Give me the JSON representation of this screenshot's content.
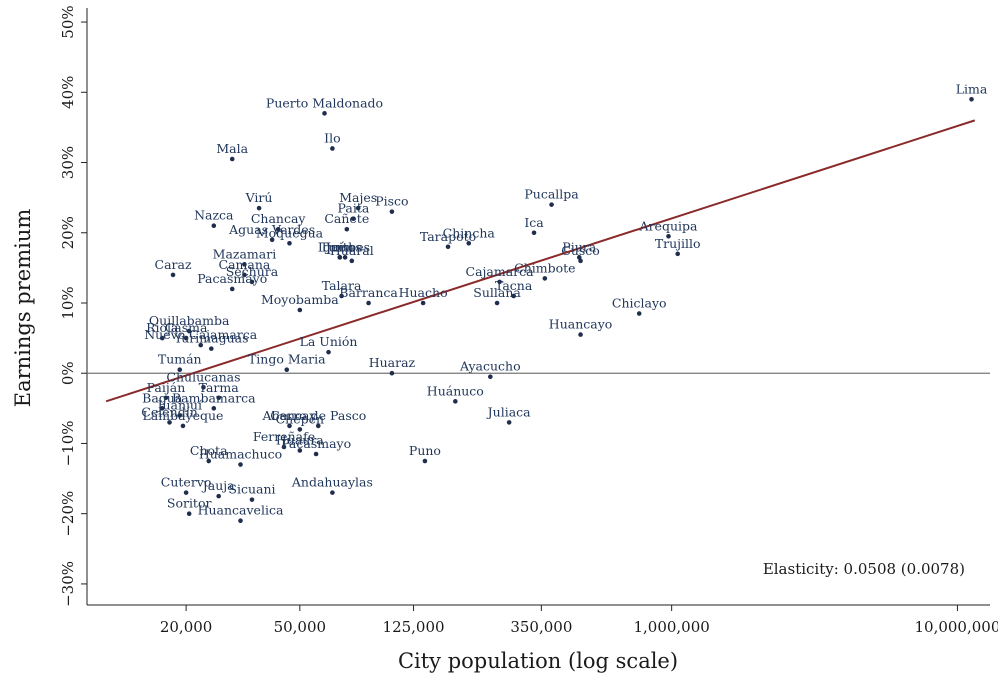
{
  "chart_data": {
    "type": "scatter",
    "title": "",
    "xlabel": "City population (log scale)",
    "ylabel": "Earnings premium",
    "x_scale": "log",
    "xlim": [
      9000,
      13000000
    ],
    "ylim": [
      -33,
      52
    ],
    "x_ticks": [
      20000,
      50000,
      125000,
      350000,
      1000000,
      10000000
    ],
    "x_tick_labels": [
      "20,000",
      "50,000",
      "125,000",
      "350,000",
      "1,000,000",
      "10,000,000"
    ],
    "y_ticks": [
      -30,
      -20,
      -10,
      0,
      10,
      20,
      30,
      40,
      50
    ],
    "y_tick_labels": [
      "−30%",
      "−20%",
      "−10%",
      "0%",
      "10%",
      "20%",
      "30%",
      "40%",
      "50%"
    ],
    "reference_line_y": 0,
    "grid": false,
    "colors": {
      "points": "#1f2e4d",
      "labels": "#1f3559",
      "fit_line": "#8b2a2a",
      "reference_line": "#777777",
      "axis": "#222222"
    },
    "annotation": "Elasticity: 0.0508 (0.0078)",
    "fit_line": {
      "x": [
        10500,
        11500000
      ],
      "y": [
        -4.0,
        36.0
      ]
    },
    "points": [
      {
        "label": "Lima",
        "x": 11200000,
        "y": 39
      },
      {
        "label": "Puerto Maldonado",
        "x": 61000,
        "y": 37
      },
      {
        "label": "Ilo",
        "x": 65000,
        "y": 32
      },
      {
        "label": "Mala",
        "x": 29000,
        "y": 30.5
      },
      {
        "label": "Pucallpa",
        "x": 380000,
        "y": 24
      },
      {
        "label": "Virú",
        "x": 36000,
        "y": 23.5
      },
      {
        "label": "Majes",
        "x": 80000,
        "y": 23.5
      },
      {
        "label": "Pisco",
        "x": 105000,
        "y": 23
      },
      {
        "label": "Paita",
        "x": 77000,
        "y": 22
      },
      {
        "label": "Nazca",
        "x": 25000,
        "y": 21
      },
      {
        "label": "Chancay",
        "x": 42000,
        "y": 20.5
      },
      {
        "label": "Cañete",
        "x": 73000,
        "y": 20.5
      },
      {
        "label": "Ica",
        "x": 330000,
        "y": 20
      },
      {
        "label": "Arequipa",
        "x": 975000,
        "y": 19.5
      },
      {
        "label": "Aguas Verdes",
        "x": 40000,
        "y": 19
      },
      {
        "label": "Moquegua",
        "x": 46000,
        "y": 18.5
      },
      {
        "label": "Chincha",
        "x": 195000,
        "y": 18.5
      },
      {
        "label": "Tarapoto",
        "x": 165000,
        "y": 18
      },
      {
        "label": "Jaén",
        "x": 69000,
        "y": 16.5
      },
      {
        "label": "Iquitos",
        "x": 69000,
        "y": 16.5
      },
      {
        "label": "Tumbes",
        "x": 72000,
        "y": 16.5
      },
      {
        "label": "Huaral",
        "x": 76000,
        "y": 16
      },
      {
        "label": "Chimbote",
        "x": 360000,
        "y": 13.5
      },
      {
        "label": "Trujillo",
        "x": 1050000,
        "y": 17
      },
      {
        "label": "Piura",
        "x": 475000,
        "y": 16.5
      },
      {
        "label": "Cusco",
        "x": 480000,
        "y": 16
      },
      {
        "label": "Mazamari",
        "x": 32000,
        "y": 15.5
      },
      {
        "label": "Caraz",
        "x": 18000,
        "y": 14
      },
      {
        "label": "Camana",
        "x": 32000,
        "y": 14
      },
      {
        "label": "Sechura",
        "x": 34000,
        "y": 13
      },
      {
        "label": "Pacasmayo",
        "x": 29000,
        "y": 12
      },
      {
        "label": "Cajamarca",
        "x": 250000,
        "y": 13
      },
      {
        "label": "Tacna",
        "x": 280000,
        "y": 11
      },
      {
        "label": "Sullana",
        "x": 245000,
        "y": 10
      },
      {
        "label": "Talara",
        "x": 70000,
        "y": 11
      },
      {
        "label": "Barranca",
        "x": 87000,
        "y": 10
      },
      {
        "label": "Huacho",
        "x": 135000,
        "y": 10
      },
      {
        "label": "Moyobamba",
        "x": 50000,
        "y": 9
      },
      {
        "label": "Chiclayo",
        "x": 770000,
        "y": 8.5
      },
      {
        "label": "Quillabamba",
        "x": 20500,
        "y": 6
      },
      {
        "label": "Rioja",
        "x": 16500,
        "y": 5
      },
      {
        "label": "Casma",
        "x": 20000,
        "y": 5
      },
      {
        "label": "Nuevo Cajamarca",
        "x": 22500,
        "y": 4
      },
      {
        "label": "Yurimaguas",
        "x": 24500,
        "y": 3.5
      },
      {
        "label": "Huancayo",
        "x": 480000,
        "y": 5.5
      },
      {
        "label": "La Unión",
        "x": 63000,
        "y": 3
      },
      {
        "label": "Tingo Maria",
        "x": 45000,
        "y": 0.5
      },
      {
        "label": "Huaraz",
        "x": 105000,
        "y": 0
      },
      {
        "label": "Ayacucho",
        "x": 232000,
        "y": -0.5
      },
      {
        "label": "Tumán",
        "x": 19000,
        "y": 0.5
      },
      {
        "label": "Paiján",
        "x": 17000,
        "y": -3.5
      },
      {
        "label": "Chulucanas",
        "x": 23000,
        "y": -2
      },
      {
        "label": "Tarma",
        "x": 26000,
        "y": -3.5
      },
      {
        "label": "Bagua",
        "x": 16500,
        "y": -5
      },
      {
        "label": "Bambamarca",
        "x": 25000,
        "y": -5
      },
      {
        "label": "Juanjuí",
        "x": 19000,
        "y": -6
      },
      {
        "label": "Celendín",
        "x": 17500,
        "y": -7
      },
      {
        "label": "Lambayeque",
        "x": 19500,
        "y": -7.5
      },
      {
        "label": "Huánuco",
        "x": 175000,
        "y": -4
      },
      {
        "label": "Juliaca",
        "x": 270000,
        "y": -7
      },
      {
        "label": "Abancay",
        "x": 46000,
        "y": -7.5
      },
      {
        "label": "Chepén",
        "x": 50000,
        "y": -8
      },
      {
        "label": "Cerro de Pasco",
        "x": 58000,
        "y": -7.5
      },
      {
        "label": "Ferreñafe",
        "x": 44000,
        "y": -10.5
      },
      {
        "label": "Huaura",
        "x": 50000,
        "y": -11
      },
      {
        "label": "Pacasmayo",
        "x": 57000,
        "y": -11.5
      },
      {
        "label": "Chota",
        "x": 24000,
        "y": -12.5
      },
      {
        "label": "Huamachuco",
        "x": 31000,
        "y": -13
      },
      {
        "label": "Puno",
        "x": 137000,
        "y": -12.5
      },
      {
        "label": "Cutervo",
        "x": 20000,
        "y": -17
      },
      {
        "label": "Jauja",
        "x": 26000,
        "y": -17.5
      },
      {
        "label": "Sicuani",
        "x": 34000,
        "y": -18
      },
      {
        "label": "Andahuaylas",
        "x": 65000,
        "y": -17
      },
      {
        "label": "Soritor",
        "x": 20500,
        "y": -20
      },
      {
        "label": "Huancavelica",
        "x": 31000,
        "y": -21
      }
    ]
  }
}
